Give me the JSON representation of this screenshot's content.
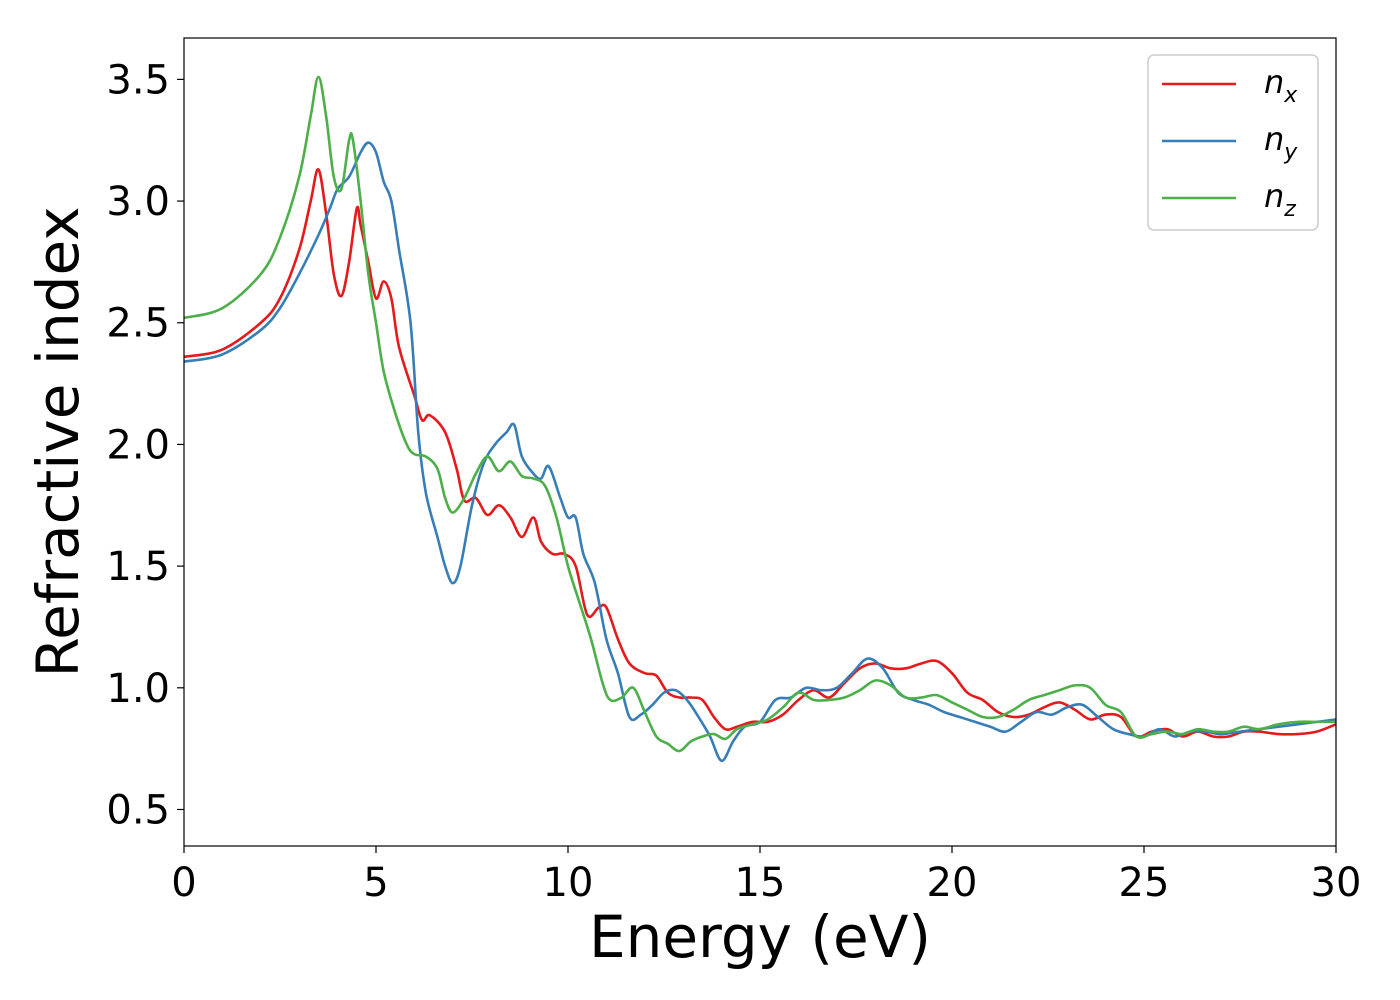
{
  "chart_data": {
    "type": "line",
    "xlabel": "Energy (eV)",
    "ylabel": "Refractive index",
    "xlim": [
      0,
      30
    ],
    "ylim": [
      0.35,
      3.67
    ],
    "xticks": [
      0,
      5,
      10,
      15,
      20,
      25,
      30
    ],
    "xtick_labels": [
      "0",
      "5",
      "10",
      "15",
      "20",
      "25",
      "30"
    ],
    "yticks": [
      0.5,
      1.0,
      1.5,
      2.0,
      2.5,
      3.0,
      3.5
    ],
    "ytick_labels": [
      "0.5",
      "1.0",
      "1.5",
      "2.0",
      "2.5",
      "3.0",
      "3.5"
    ],
    "grid": false,
    "legend_position": "top-right",
    "series": [
      {
        "name": "n_x",
        "label_base": "n",
        "label_sub": "x",
        "color": "#e41a1c",
        "x": [
          0,
          1,
          2,
          2.5,
          3,
          3.3,
          3.5,
          3.7,
          3.9,
          4.1,
          4.3,
          4.5,
          4.6,
          4.8,
          5.0,
          5.2,
          5.4,
          5.6,
          6.0,
          6.2,
          6.4,
          6.8,
          7.1,
          7.3,
          7.6,
          7.9,
          8.2,
          8.5,
          8.8,
          9.1,
          9.3,
          9.6,
          9.9,
          10.2,
          10.5,
          10.8,
          11.0,
          11.3,
          11.6,
          12.0,
          12.3,
          12.6,
          12.9,
          13.2,
          13.5,
          13.8,
          14.1,
          14.4,
          14.8,
          15.2,
          15.6,
          16.0,
          16.4,
          16.8,
          17.2,
          17.6,
          18.0,
          18.4,
          18.8,
          19.2,
          19.6,
          20.0,
          20.4,
          20.8,
          21.2,
          21.6,
          22.0,
          22.4,
          22.8,
          23.2,
          23.6,
          24.0,
          24.4,
          24.8,
          25.2,
          25.6,
          26.0,
          26.4,
          26.8,
          27.2,
          27.6,
          28.0,
          28.5,
          29.0,
          29.5,
          30.0
        ],
        "y": [
          2.36,
          2.39,
          2.5,
          2.6,
          2.8,
          3.0,
          3.13,
          2.95,
          2.7,
          2.61,
          2.75,
          2.97,
          2.9,
          2.75,
          2.6,
          2.67,
          2.6,
          2.4,
          2.2,
          2.1,
          2.12,
          2.05,
          1.9,
          1.77,
          1.78,
          1.71,
          1.75,
          1.7,
          1.62,
          1.7,
          1.6,
          1.55,
          1.55,
          1.5,
          1.3,
          1.33,
          1.33,
          1.2,
          1.1,
          1.06,
          1.05,
          0.98,
          0.96,
          0.96,
          0.95,
          0.88,
          0.83,
          0.84,
          0.86,
          0.86,
          0.89,
          0.95,
          0.99,
          0.96,
          1.02,
          1.08,
          1.1,
          1.08,
          1.08,
          1.1,
          1.11,
          1.06,
          0.98,
          0.95,
          0.9,
          0.88,
          0.89,
          0.92,
          0.94,
          0.91,
          0.87,
          0.89,
          0.88,
          0.8,
          0.82,
          0.83,
          0.8,
          0.82,
          0.8,
          0.8,
          0.82,
          0.82,
          0.81,
          0.81,
          0.82,
          0.85
        ]
      },
      {
        "name": "n_y",
        "label_base": "n",
        "label_sub": "y",
        "color": "#377eb8",
        "x": [
          0,
          1,
          2,
          2.5,
          3,
          3.5,
          3.8,
          4.0,
          4.3,
          4.6,
          4.8,
          5.0,
          5.2,
          5.4,
          5.6,
          5.9,
          6.1,
          6.3,
          6.6,
          6.8,
          7.0,
          7.2,
          7.5,
          7.8,
          8.1,
          8.4,
          8.6,
          8.8,
          9.1,
          9.3,
          9.5,
          9.8,
          10.0,
          10.2,
          10.4,
          10.7,
          11.0,
          11.3,
          11.6,
          11.9,
          12.2,
          12.5,
          12.8,
          13.1,
          13.4,
          13.7,
          14.0,
          14.3,
          14.6,
          15.0,
          15.4,
          15.8,
          16.2,
          16.6,
          17.0,
          17.4,
          17.8,
          18.2,
          18.6,
          19.0,
          19.4,
          19.8,
          20.2,
          20.6,
          21.0,
          21.4,
          21.8,
          22.2,
          22.6,
          23.0,
          23.4,
          23.8,
          24.2,
          24.6,
          25.0,
          25.4,
          25.8,
          26.2,
          26.6,
          27.0,
          27.5,
          28.0,
          28.5,
          29.0,
          29.5,
          30.0
        ],
        "y": [
          2.34,
          2.37,
          2.47,
          2.56,
          2.7,
          2.86,
          2.97,
          3.05,
          3.1,
          3.2,
          3.24,
          3.2,
          3.08,
          3.0,
          2.8,
          2.5,
          2.05,
          1.8,
          1.62,
          1.5,
          1.43,
          1.5,
          1.75,
          1.92,
          2.0,
          2.05,
          2.08,
          1.95,
          1.88,
          1.86,
          1.91,
          1.78,
          1.7,
          1.7,
          1.55,
          1.43,
          1.2,
          1.06,
          0.88,
          0.89,
          0.93,
          0.98,
          0.99,
          0.95,
          0.88,
          0.8,
          0.7,
          0.78,
          0.84,
          0.86,
          0.95,
          0.96,
          1.0,
          0.99,
          1.0,
          1.06,
          1.12,
          1.08,
          0.98,
          0.95,
          0.93,
          0.9,
          0.88,
          0.86,
          0.84,
          0.82,
          0.86,
          0.9,
          0.89,
          0.92,
          0.93,
          0.88,
          0.83,
          0.81,
          0.8,
          0.83,
          0.8,
          0.82,
          0.82,
          0.81,
          0.82,
          0.83,
          0.84,
          0.85,
          0.86,
          0.87
        ]
      },
      {
        "name": "n_z",
        "label_base": "n",
        "label_sub": "z",
        "color": "#4daf4a",
        "x": [
          0,
          1,
          2,
          2.5,
          3,
          3.3,
          3.5,
          3.7,
          3.9,
          4.1,
          4.3,
          4.4,
          4.6,
          4.8,
          5.0,
          5.2,
          5.5,
          5.8,
          6.0,
          6.3,
          6.6,
          6.8,
          7.0,
          7.3,
          7.6,
          7.9,
          8.2,
          8.5,
          8.8,
          9.1,
          9.4,
          9.7,
          10.0,
          10.3,
          10.6,
          10.9,
          11.1,
          11.4,
          11.7,
          12.0,
          12.3,
          12.6,
          12.9,
          13.2,
          13.5,
          13.8,
          14.1,
          14.4,
          14.8,
          15.2,
          15.6,
          16.0,
          16.4,
          16.8,
          17.2,
          17.6,
          18.0,
          18.4,
          18.8,
          19.2,
          19.6,
          20.0,
          20.4,
          20.8,
          21.2,
          21.6,
          22.0,
          22.4,
          22.8,
          23.2,
          23.6,
          24.0,
          24.4,
          24.8,
          25.2,
          25.6,
          26.0,
          26.4,
          26.8,
          27.2,
          27.6,
          28.0,
          28.5,
          29.0,
          29.5,
          30.0
        ],
        "y": [
          2.52,
          2.56,
          2.7,
          2.85,
          3.1,
          3.35,
          3.51,
          3.35,
          3.1,
          3.05,
          3.25,
          3.25,
          3.0,
          2.7,
          2.5,
          2.3,
          2.13,
          2.0,
          1.96,
          1.95,
          1.9,
          1.78,
          1.72,
          1.78,
          1.88,
          1.95,
          1.89,
          1.93,
          1.87,
          1.86,
          1.83,
          1.7,
          1.5,
          1.35,
          1.2,
          1.02,
          0.95,
          0.96,
          1.0,
          0.9,
          0.8,
          0.77,
          0.74,
          0.78,
          0.8,
          0.81,
          0.79,
          0.83,
          0.85,
          0.87,
          0.92,
          0.98,
          0.95,
          0.95,
          0.96,
          0.99,
          1.03,
          1.01,
          0.96,
          0.96,
          0.97,
          0.94,
          0.91,
          0.88,
          0.88,
          0.91,
          0.95,
          0.97,
          0.99,
          1.01,
          1.0,
          0.93,
          0.9,
          0.8,
          0.81,
          0.82,
          0.81,
          0.83,
          0.82,
          0.82,
          0.84,
          0.83,
          0.85,
          0.86,
          0.86,
          0.86
        ]
      }
    ]
  }
}
